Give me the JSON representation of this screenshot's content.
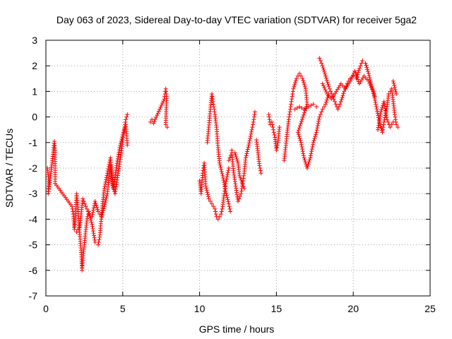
{
  "chart_data": {
    "type": "scatter",
    "title": "Day 063 of 2023, Sidereal Day-to-day VTEC variation (SDTVAR) for receiver 5ga2",
    "xlabel": "GPS time / hours",
    "ylabel": "SDTVAR / TECUs",
    "xlim": [
      0,
      25
    ],
    "ylim": [
      -7,
      3
    ],
    "xticks": [
      0,
      5,
      10,
      15,
      20,
      25
    ],
    "yticks": [
      -7,
      -6,
      -5,
      -4,
      -3,
      -2,
      -1,
      0,
      1,
      2,
      3
    ],
    "grid": true,
    "marker": "+",
    "color": "#ff0000",
    "series": [
      {
        "name": "SDTVAR",
        "trace": [
          [
            0.1,
            -2.0
          ],
          [
            0.2,
            -2.6
          ],
          [
            0.15,
            -3.0
          ],
          [
            0.3,
            -2.3
          ],
          [
            0.4,
            -1.8
          ],
          [
            0.5,
            -1.2
          ],
          [
            0.55,
            -0.95
          ],
          [
            0.6,
            -1.4
          ],
          [
            0.6,
            -2.6
          ],
          [
            1.7,
            -3.5
          ],
          [
            1.8,
            -3.9
          ],
          [
            1.85,
            -4.4
          ],
          [
            1.9,
            -4.1
          ],
          [
            2.0,
            -3.0
          ],
          [
            2.1,
            -3.7
          ],
          [
            2.2,
            -4.6
          ],
          [
            2.3,
            -5.3
          ],
          [
            2.35,
            -6.0
          ],
          [
            2.4,
            -5.6
          ],
          [
            2.5,
            -5.0
          ],
          [
            2.6,
            -4.4
          ],
          [
            2.7,
            -3.9
          ],
          [
            2.8,
            -3.7
          ],
          [
            3.0,
            -4.2
          ],
          [
            3.2,
            -4.9
          ],
          [
            3.4,
            -5.0
          ],
          [
            3.5,
            -4.7
          ],
          [
            3.6,
            -4.0
          ],
          [
            3.8,
            -3.5
          ],
          [
            4.0,
            -3.0
          ],
          [
            4.1,
            -2.4
          ],
          [
            4.2,
            -1.9
          ],
          [
            4.3,
            -2.6
          ],
          [
            4.5,
            -3.0
          ],
          [
            4.7,
            -2.2
          ],
          [
            4.9,
            -1.4
          ],
          [
            5.0,
            -0.9
          ],
          [
            5.1,
            -0.5
          ],
          [
            5.2,
            -0.1
          ],
          [
            5.3,
            0.1
          ],
          [
            2.0,
            -4.5
          ],
          [
            2.2,
            -4.3
          ],
          [
            2.4,
            -3.2
          ],
          [
            2.6,
            -3.5
          ],
          [
            2.8,
            -3.8
          ],
          [
            3.0,
            -3.9
          ],
          [
            3.2,
            -3.3
          ],
          [
            3.4,
            -3.7
          ],
          [
            3.6,
            -3.9
          ],
          [
            3.8,
            -2.8
          ],
          [
            4.0,
            -2.2
          ],
          [
            4.2,
            -1.6
          ],
          [
            4.4,
            -2.8
          ],
          [
            4.6,
            -1.9
          ],
          [
            4.8,
            -1.2
          ],
          [
            5.0,
            -0.7
          ],
          [
            5.2,
            -0.3
          ],
          [
            5.3,
            -1.1
          ],
          [
            6.8,
            -0.2
          ],
          [
            6.9,
            -0.1
          ],
          [
            7.0,
            -0.25
          ],
          [
            7.7,
            0.7
          ],
          [
            7.8,
            1.1
          ],
          [
            7.85,
            0.8
          ],
          [
            7.8,
            -0.3
          ],
          [
            7.9,
            -0.4
          ],
          [
            10.0,
            -2.5
          ],
          [
            10.1,
            -3.0
          ],
          [
            10.2,
            -2.2
          ],
          [
            10.3,
            -1.8
          ],
          [
            10.4,
            -2.7
          ],
          [
            10.6,
            -3.2
          ],
          [
            10.8,
            -3.4
          ],
          [
            11.0,
            -3.6
          ],
          [
            11.1,
            -3.9
          ],
          [
            11.2,
            -4.0
          ],
          [
            11.4,
            -3.8
          ],
          [
            11.5,
            -3.5
          ],
          [
            11.6,
            -3.0
          ],
          [
            11.7,
            -2.6
          ],
          [
            11.9,
            -2.0
          ],
          [
            10.5,
            -1.0
          ],
          [
            10.6,
            -0.4
          ],
          [
            10.7,
            0.3
          ],
          [
            10.8,
            0.9
          ],
          [
            10.9,
            0.5
          ],
          [
            11.0,
            0.1
          ],
          [
            11.1,
            -0.4
          ],
          [
            11.2,
            -1.2
          ],
          [
            11.3,
            -1.8
          ],
          [
            11.5,
            -2.3
          ],
          [
            11.7,
            -2.9
          ],
          [
            11.9,
            -3.4
          ],
          [
            12.0,
            -3.7
          ],
          [
            11.9,
            -1.7
          ],
          [
            12.1,
            -1.4
          ],
          [
            12.2,
            -2.1
          ],
          [
            12.5,
            -3.3
          ],
          [
            12.7,
            -3.0
          ],
          [
            12.8,
            -2.6
          ],
          [
            12.9,
            -2.2
          ],
          [
            13.0,
            -1.6
          ],
          [
            13.2,
            -1.1
          ],
          [
            13.4,
            -0.5
          ],
          [
            13.5,
            -0.2
          ],
          [
            13.6,
            0.2
          ],
          [
            12.1,
            -1.3
          ],
          [
            12.3,
            -1.4
          ],
          [
            12.5,
            -1.8
          ],
          [
            12.6,
            -2.3
          ],
          [
            12.9,
            -2.8
          ],
          [
            13.7,
            -0.9
          ],
          [
            13.8,
            -1.4
          ],
          [
            13.9,
            -1.9
          ],
          [
            14.0,
            -2.2
          ],
          [
            14.5,
            0.1
          ],
          [
            14.6,
            -0.3
          ],
          [
            14.7,
            -0.2
          ],
          [
            14.8,
            -0.5
          ],
          [
            14.9,
            -0.8
          ],
          [
            15.0,
            -1.3
          ],
          [
            15.1,
            -1.0
          ],
          [
            15.2,
            -0.4
          ],
          [
            15.5,
            -1.7
          ],
          [
            15.6,
            -1.2
          ],
          [
            15.7,
            -0.6
          ],
          [
            15.8,
            -0.1
          ],
          [
            15.9,
            0.3
          ],
          [
            16.0,
            0.7
          ],
          [
            16.1,
            1.1
          ],
          [
            16.3,
            1.5
          ],
          [
            16.5,
            1.7
          ],
          [
            16.7,
            1.5
          ],
          [
            16.9,
            1.1
          ],
          [
            17.0,
            0.5
          ],
          [
            16.4,
            -0.6
          ],
          [
            16.6,
            -1.0
          ],
          [
            16.8,
            -1.6
          ],
          [
            17.0,
            -2.0
          ],
          [
            17.2,
            -1.6
          ],
          [
            17.4,
            -1.0
          ],
          [
            17.6,
            -0.6
          ],
          [
            17.8,
            0.0
          ],
          [
            18.0,
            0.3
          ],
          [
            18.2,
            0.5
          ],
          [
            18.4,
            0.9
          ],
          [
            16.2,
            0.3
          ],
          [
            16.5,
            0.4
          ],
          [
            16.8,
            0.3
          ],
          [
            17.1,
            0.4
          ],
          [
            17.4,
            0.5
          ],
          [
            17.6,
            0.4
          ],
          [
            17.8,
            2.3
          ],
          [
            18.0,
            2.0
          ],
          [
            18.2,
            1.6
          ],
          [
            18.4,
            1.2
          ],
          [
            18.6,
            0.9
          ],
          [
            18.8,
            0.6
          ],
          [
            19.0,
            0.3
          ],
          [
            19.2,
            0.6
          ],
          [
            19.4,
            1.0
          ],
          [
            19.6,
            1.3
          ],
          [
            19.8,
            1.5
          ],
          [
            20.0,
            1.6
          ],
          [
            20.2,
            1.5
          ],
          [
            20.4,
            1.9
          ],
          [
            20.6,
            2.2
          ],
          [
            20.8,
            2.1
          ],
          [
            21.0,
            1.7
          ],
          [
            21.2,
            1.2
          ],
          [
            21.4,
            0.8
          ],
          [
            18.0,
            1.3
          ],
          [
            18.3,
            0.9
          ],
          [
            18.6,
            0.7
          ],
          [
            18.9,
            1.0
          ],
          [
            19.2,
            1.3
          ],
          [
            19.5,
            1.1
          ],
          [
            19.8,
            1.4
          ],
          [
            20.1,
            1.8
          ],
          [
            20.4,
            1.3
          ],
          [
            20.7,
            1.6
          ],
          [
            21.0,
            1.4
          ],
          [
            21.3,
            1.0
          ],
          [
            21.5,
            0.4
          ],
          [
            21.7,
            -0.2
          ],
          [
            21.9,
            -0.6
          ],
          [
            22.0,
            -0.2
          ],
          [
            22.2,
            0.4
          ],
          [
            22.3,
            0.9
          ],
          [
            22.5,
            1.1
          ],
          [
            22.6,
            0.6
          ],
          [
            22.7,
            0.1
          ],
          [
            22.8,
            -0.3
          ],
          [
            22.9,
            -0.4
          ],
          [
            22.6,
            1.4
          ],
          [
            22.8,
            0.9
          ],
          [
            21.6,
            -0.5
          ],
          [
            21.8,
            0.2
          ],
          [
            22.0,
            0.6
          ],
          [
            22.2,
            -0.1
          ],
          [
            22.4,
            -0.4
          ],
          [
            22.6,
            -0.2
          ]
        ]
      }
    ]
  }
}
